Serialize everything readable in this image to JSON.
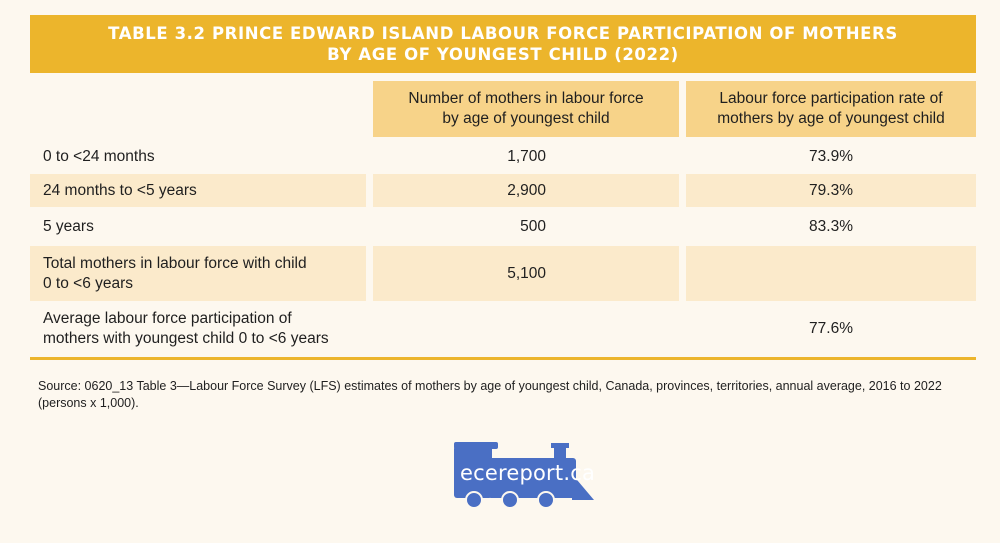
{
  "title": {
    "line1": "TABLE 3.2 PRINCE EDWARD ISLAND LABOUR FORCE PARTICIPATION OF MOTHERS",
    "line2": "BY AGE OF YOUNGEST CHILD (2022)"
  },
  "columns": {
    "col1": {
      "line1": "Number of mothers in labour force",
      "line2": "by age of youngest child"
    },
    "col2": {
      "line1": "Labour force participation rate of",
      "line2": "mothers by age of youngest child"
    }
  },
  "rows": [
    {
      "label_line1": "0 to <24 months",
      "label_line2": "",
      "number": "1,700",
      "rate": "73.9%"
    },
    {
      "label_line1": "24 months to <5 years",
      "label_line2": "",
      "number": "2,900",
      "rate": "79.3%"
    },
    {
      "label_line1": "5 years",
      "label_line2": "",
      "number": "500",
      "rate": "83.3%"
    },
    {
      "label_line1": "Total mothers in labour force with child",
      "label_line2": "0 to <6 years",
      "number": "5,100",
      "rate": ""
    },
    {
      "label_line1": "Average labour force participation of",
      "label_line2": "mothers with youngest child 0 to <6 years",
      "number": "",
      "rate": "77.6%"
    }
  ],
  "source": {
    "line1": "Source: 0620_13 Table 3—Labour Force Survey (LFS) estimates of mothers by age of youngest child, Canada, provinces, territories, annual average, 2016 to 2022",
    "line2": "(persons x 1,000)."
  },
  "logo": {
    "text": "ecereport.ca",
    "icon": "train-icon"
  },
  "colors": {
    "accent": "#ecb52c",
    "header_fill": "#f7d389",
    "row_fill": "#fbeacb",
    "logo_blue": "#4a6fc4",
    "background": "#fdf8ef"
  }
}
